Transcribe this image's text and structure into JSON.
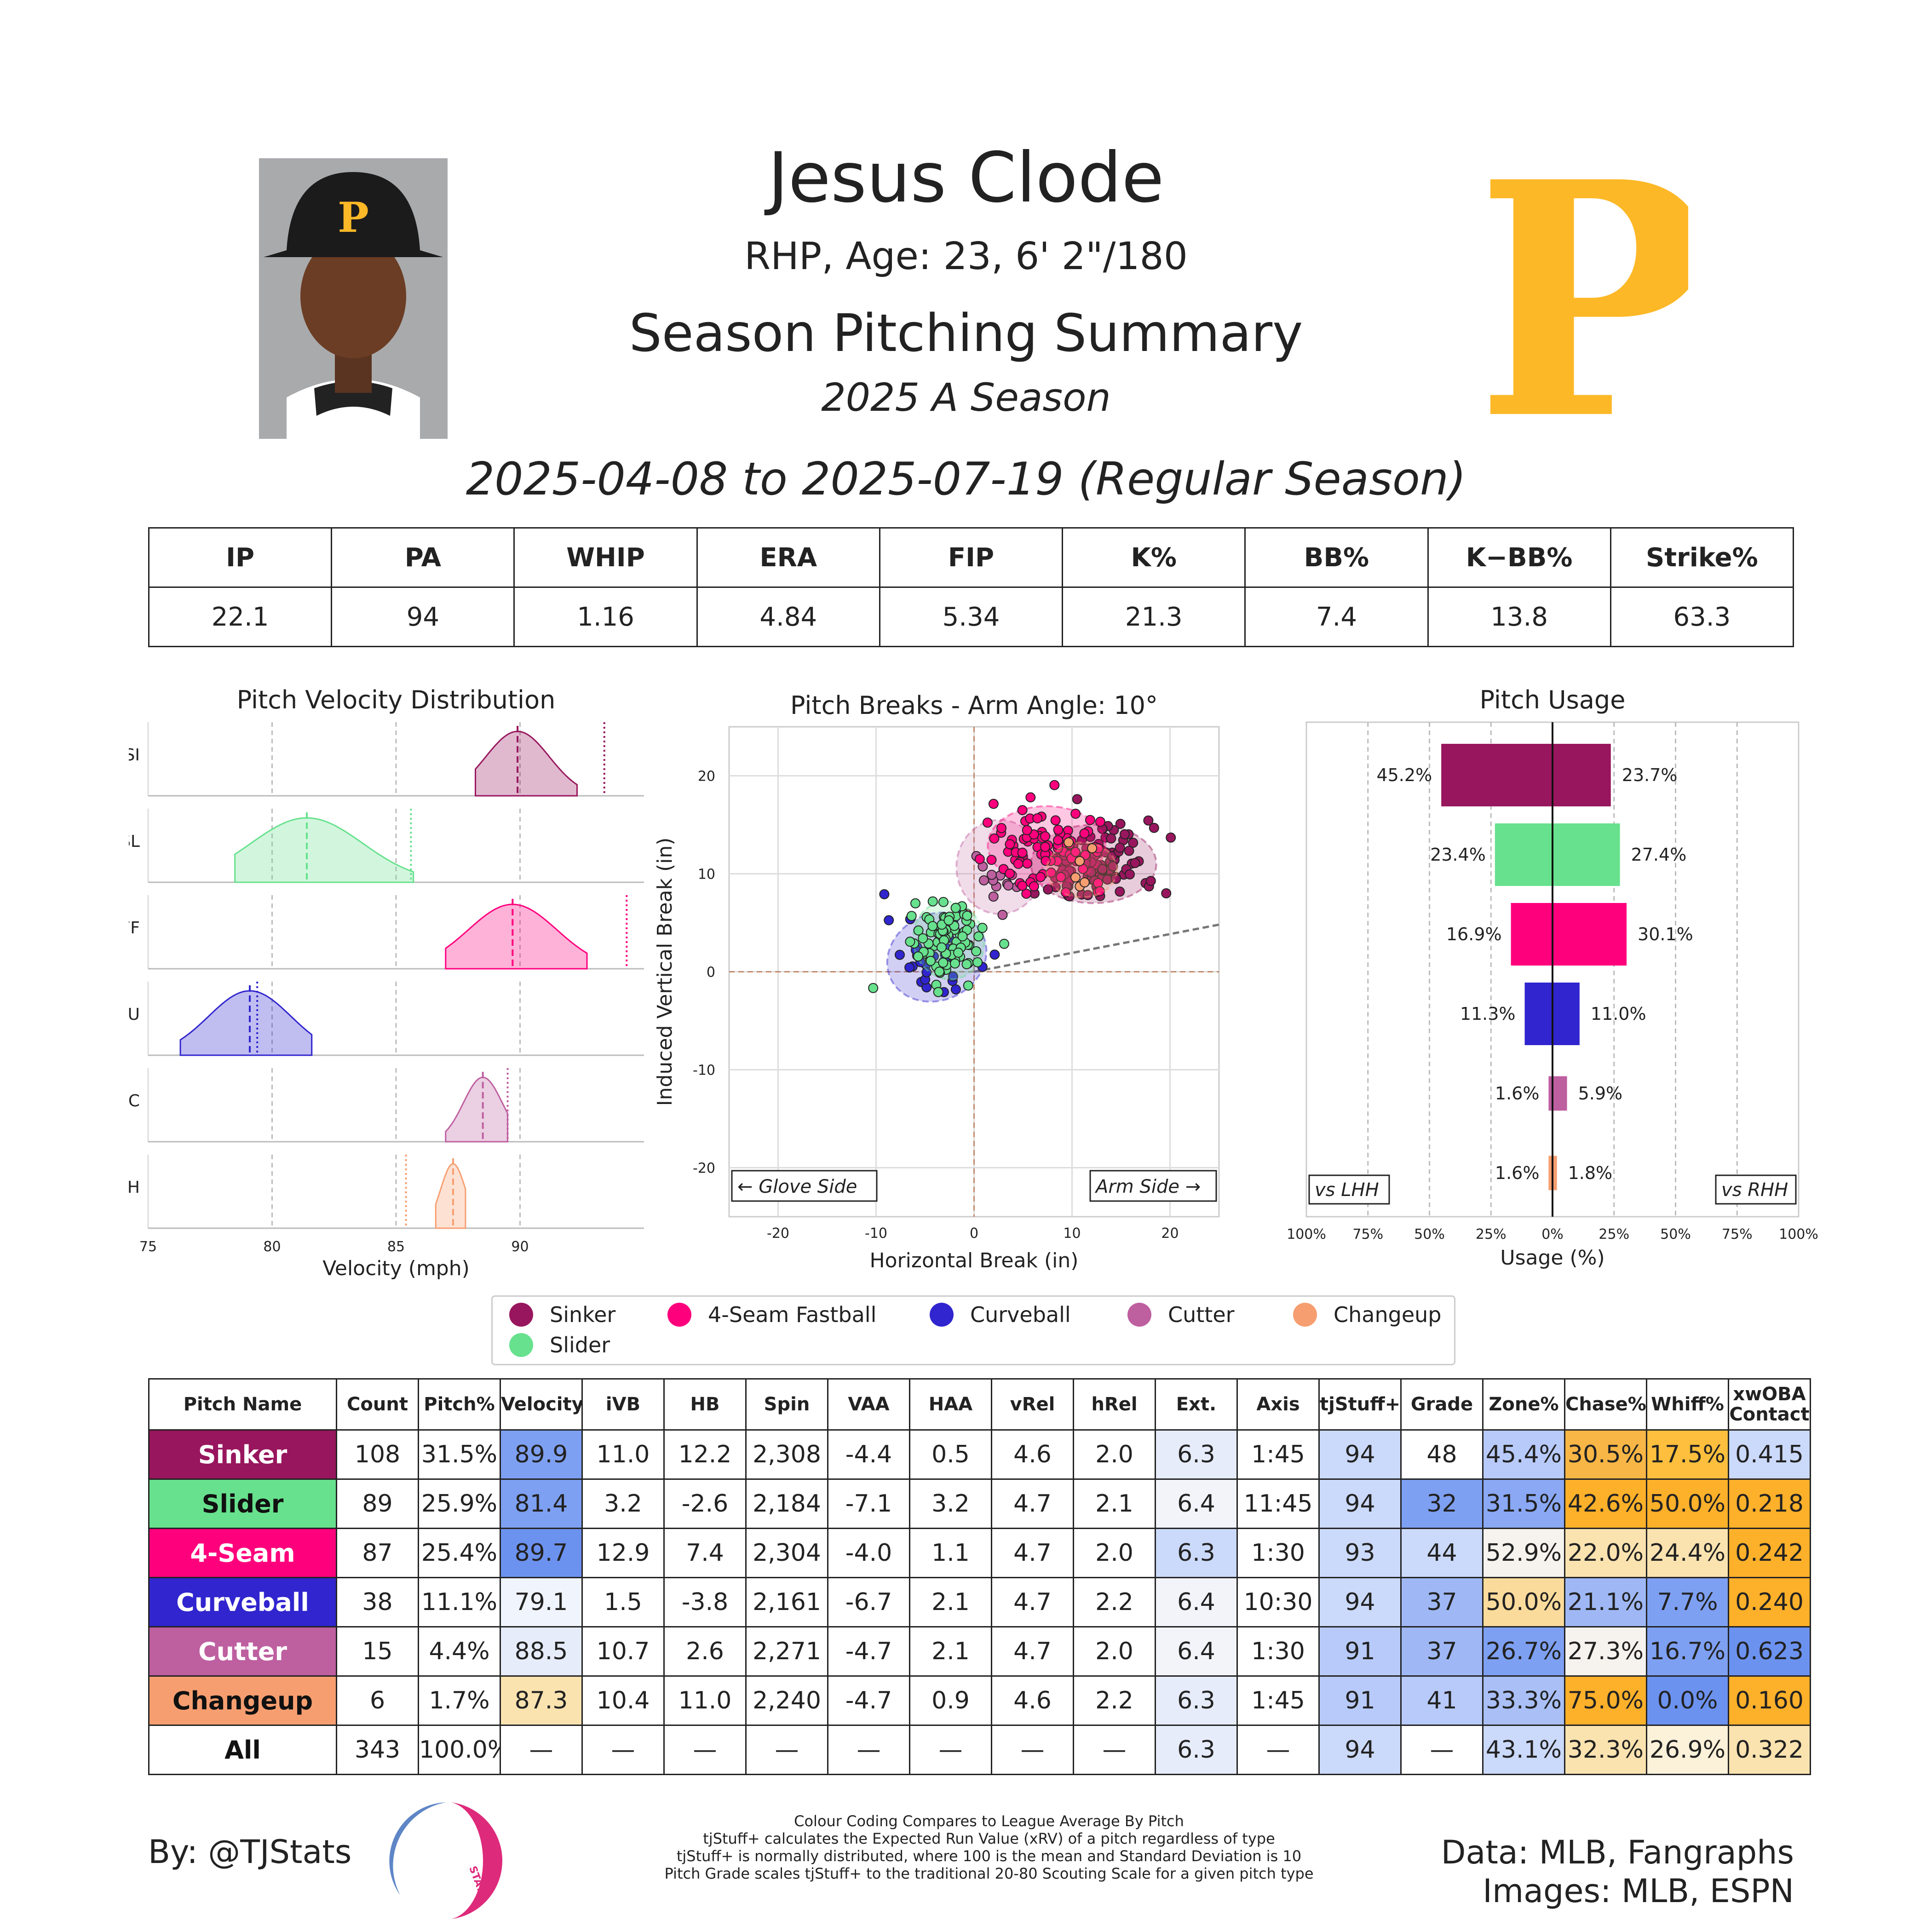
{
  "header": {
    "name": "Jesus Clode",
    "bio": "RHP, Age: 23, 6' 2\"/180",
    "title": "Season Pitching Summary",
    "season": "2025 A Season",
    "date_range": "2025-04-08 to 2025-07-19 (Regular Season)",
    "logo_letter": "P"
  },
  "colors": {
    "Sinker": "#98165d",
    "Slider": "#67e18d",
    "4-Seam Fastball": "#ff007d",
    "Curveball": "#3025ce",
    "Cutter": "#be5fa0",
    "Changeup": "#f79e70",
    "team_gold": "#fdb827"
  },
  "season_stats": {
    "headers": [
      "IP",
      "PA",
      "WHIP",
      "ERA",
      "FIP",
      "K%",
      "BB%",
      "K−BB%",
      "Strike%"
    ],
    "values": [
      "22.1",
      "94",
      "1.16",
      "4.84",
      "5.34",
      "21.3",
      "7.4",
      "13.8",
      "63.3"
    ]
  },
  "legend": [
    "Sinker",
    "4-Seam Fastball",
    "Curveball",
    "Cutter",
    "Changeup",
    "Slider"
  ],
  "chart_data": [
    {
      "type": "area",
      "title": "Pitch Velocity Distribution",
      "xlabel": "Velocity (mph)",
      "xlim": [
        75,
        95
      ],
      "xticks": [
        "75",
        "80",
        "85",
        "90"
      ],
      "rows": [
        {
          "label": "SI",
          "pitch": "Sinker",
          "min": 88.2,
          "max": 92.3,
          "mean": 89.9,
          "league": 93.4
        },
        {
          "label": "SL",
          "pitch": "Slider",
          "min": 78.5,
          "max": 85.7,
          "mean": 81.4,
          "league": 85.6
        },
        {
          "label": "FF",
          "pitch": "4-Seam Fastball",
          "min": 87.0,
          "max": 92.7,
          "mean": 89.7,
          "league": 94.3
        },
        {
          "label": "CU",
          "pitch": "Curveball",
          "min": 76.3,
          "max": 81.6,
          "mean": 79.1,
          "league": 79.4
        },
        {
          "label": "FC",
          "pitch": "Cutter",
          "min": 87.0,
          "max": 89.5,
          "mean": 88.5,
          "league": 89.5
        },
        {
          "label": "CH",
          "pitch": "Changeup",
          "min": 86.6,
          "max": 87.8,
          "mean": 87.3,
          "league": 85.4
        }
      ]
    },
    {
      "type": "scatter",
      "title": "Pitch Breaks - Arm Angle: 10°",
      "xlabel": "Horizontal Break (in)",
      "ylabel": "Induced Vertical Break (in)",
      "xlim": [
        -25,
        25
      ],
      "ylim": [
        -25,
        25
      ],
      "xticks": [
        "-20",
        "-10",
        "0",
        "10",
        "20"
      ],
      "yticks": [
        "-20",
        "-10",
        "0",
        "10",
        "20"
      ],
      "arm_angle": 10,
      "left_annotation": "← Glove Side",
      "right_annotation": "Arm Side →",
      "clusters": [
        {
          "pitch": "Sinker",
          "cx": 12.2,
          "cy": 11.0,
          "sx": 3.2,
          "sy": 2.0,
          "n": 108
        },
        {
          "pitch": "4-Seam Fastball",
          "cx": 7.4,
          "cy": 12.9,
          "sx": 3.0,
          "sy": 2.0,
          "n": 87
        },
        {
          "pitch": "Slider",
          "cx": -2.6,
          "cy": 3.2,
          "sx": 1.8,
          "sy": 2.0,
          "n": 89
        },
        {
          "pitch": "Curveball",
          "cx": -3.8,
          "cy": 1.5,
          "sx": 2.6,
          "sy": 2.2,
          "n": 38
        },
        {
          "pitch": "Cutter",
          "cx": 2.6,
          "cy": 10.7,
          "sx": 2.2,
          "sy": 2.4,
          "n": 15
        },
        {
          "pitch": "Changeup",
          "cx": 11.0,
          "cy": 10.4,
          "sx": 1.8,
          "sy": 1.4,
          "n": 6
        }
      ]
    },
    {
      "type": "bar",
      "title": "Pitch Usage",
      "xlabel": "Usage (%)",
      "xlim": [
        -100,
        100
      ],
      "xticks": [
        "100%",
        "75%",
        "50%",
        "25%",
        "0%",
        "25%",
        "50%",
        "75%",
        "100%"
      ],
      "left_box": "vs LHH",
      "right_box": "vs RHH",
      "series": [
        {
          "pitch": "Sinker",
          "lhh": 45.2,
          "rhh": 23.7,
          "lhh_label": "45.2%",
          "rhh_label": "23.7%"
        },
        {
          "pitch": "Slider",
          "lhh": 23.4,
          "rhh": 27.4,
          "lhh_label": "23.4%",
          "rhh_label": "27.4%"
        },
        {
          "pitch": "4-Seam Fastball",
          "lhh": 16.9,
          "rhh": 30.1,
          "lhh_label": "16.9%",
          "rhh_label": "30.1%"
        },
        {
          "pitch": "Curveball",
          "lhh": 11.3,
          "rhh": 11.0,
          "lhh_label": "11.3%",
          "rhh_label": "11.0%"
        },
        {
          "pitch": "Cutter",
          "lhh": 1.6,
          "rhh": 5.9,
          "lhh_label": "1.6%",
          "rhh_label": "5.9%"
        },
        {
          "pitch": "Changeup",
          "lhh": 1.6,
          "rhh": 1.8,
          "lhh_label": "1.6%",
          "rhh_label": "1.8%"
        }
      ]
    },
    {
      "type": "table",
      "headers": [
        "Pitch Name",
        "Count",
        "Pitch%",
        "Velocity",
        "iVB",
        "HB",
        "Spin",
        "VAA",
        "HAA",
        "vRel",
        "hRel",
        "Ext.",
        "Axis",
        "tjStuff+",
        "Grade",
        "Zone%",
        "Chase%",
        "Whiff%",
        "xwOBA Contact"
      ],
      "rows": [
        {
          "name": "Sinker",
          "bg": "#98165d",
          "fg": "#ffffff",
          "cells": [
            "108",
            "31.5%",
            "89.9",
            "11.0",
            "12.2",
            "2,308",
            "-4.4",
            "0.5",
            "4.6",
            "2.0",
            "6.3",
            "1:45",
            "94",
            "48",
            "45.4%",
            "30.5%",
            "17.5%",
            "0.415"
          ],
          "shade": {
            "3": "#7ea0f2",
            "11": "#e6ecfa",
            "13": "#cbd9fa",
            "15": "#b8cafa",
            "16": "#f8b646",
            "17": "#fdbf3d",
            "18": "#cbd9fa"
          }
        },
        {
          "name": "Slider",
          "bg": "#67e18d",
          "fg": "#111111",
          "cells": [
            "89",
            "25.9%",
            "81.4",
            "3.2",
            "-2.6",
            "2,184",
            "-7.1",
            "3.2",
            "4.7",
            "2.1",
            "6.4",
            "11:45",
            "94",
            "32",
            "31.5%",
            "42.6%",
            "50.0%",
            "0.218"
          ],
          "shade": {
            "3": "#7ea0f2",
            "11": "#f2f4fa",
            "13": "#cbd9fa",
            "14": "#7ea0f2",
            "15": "#8aa8f4",
            "16": "#fdb02a",
            "17": "#fdb02a",
            "18": "#fdb02a"
          }
        },
        {
          "name": "4-Seam",
          "bg": "#ff007d",
          "fg": "#ffffff",
          "cells": [
            "87",
            "25.4%",
            "89.7",
            "12.9",
            "7.4",
            "2,304",
            "-4.0",
            "1.1",
            "4.7",
            "2.0",
            "6.3",
            "1:30",
            "93",
            "44",
            "52.9%",
            "22.0%",
            "24.4%",
            "0.242"
          ],
          "shade": {
            "3": "#6c92f0",
            "11": "#cbd9fa",
            "13": "#cbd9fa",
            "14": "#cbd9fa",
            "15": "#f6f3ee",
            "16": "#fbe3b0",
            "17": "#fbe3b0",
            "18": "#fdb02a"
          }
        },
        {
          "name": "Curveball",
          "bg": "#3025ce",
          "fg": "#ffffff",
          "cells": [
            "38",
            "11.1%",
            "79.1",
            "1.5",
            "-3.8",
            "2,161",
            "-6.7",
            "2.1",
            "4.7",
            "2.2",
            "6.4",
            "10:30",
            "94",
            "37",
            "50.0%",
            "21.1%",
            "7.7%",
            "0.240"
          ],
          "shade": {
            "3": "#f0f4fc",
            "11": "#f2f4fa",
            "13": "#cbd9fa",
            "14": "#9fb8f5",
            "15": "#fbdb9c",
            "16": "#9fb8f5",
            "17": "#7ea0f2",
            "18": "#fdb02a"
          }
        },
        {
          "name": "Cutter",
          "bg": "#be5fa0",
          "fg": "#ffffff",
          "cells": [
            "15",
            "4.4%",
            "88.5",
            "10.7",
            "2.6",
            "2,271",
            "-4.7",
            "2.1",
            "4.7",
            "2.0",
            "6.4",
            "1:30",
            "91",
            "37",
            "26.7%",
            "27.3%",
            "16.7%",
            "0.623"
          ],
          "shade": {
            "3": "#e6ecfa",
            "11": "#f2f4fa",
            "13": "#b8cafa",
            "14": "#9fb8f5",
            "15": "#7ea0f2",
            "16": "#f6f3ee",
            "17": "#7ea0f2",
            "18": "#6c92f0"
          }
        },
        {
          "name": "Changeup",
          "bg": "#f79e70",
          "fg": "#111111",
          "cells": [
            "6",
            "1.7%",
            "87.3",
            "10.4",
            "11.0",
            "2,240",
            "-4.7",
            "0.9",
            "4.6",
            "2.2",
            "6.3",
            "1:45",
            "91",
            "41",
            "33.3%",
            "75.0%",
            "0.0%",
            "0.160"
          ],
          "shade": {
            "3": "#fbe3b0",
            "11": "#e6ecfa",
            "13": "#b8cafa",
            "14": "#b8cafa",
            "15": "#a9bff6",
            "16": "#fdb02a",
            "17": "#6c92f0",
            "18": "#fdb02a"
          }
        },
        {
          "name": "All",
          "bg": "#ffffff",
          "fg": "#111111",
          "cells": [
            "343",
            "100.0%",
            "—",
            "—",
            "—",
            "—",
            "—",
            "—",
            "—",
            "—",
            "6.3",
            "—",
            "94",
            "—",
            "43.1%",
            "32.3%",
            "26.9%",
            "0.322"
          ],
          "shade": {
            "11": "#e6ecfa",
            "13": "#cbd9fa",
            "15": "#cbd9fa",
            "16": "#fbe3b0",
            "17": "#fcf1d9",
            "18": "#fbe3b0"
          }
        }
      ]
    }
  ],
  "footer": {
    "by": "By: @TJStats",
    "note_lines": [
      "Colour Coding Compares to League Average By Pitch",
      "tjStuff+ calculates the Expected Run Value (xRV) of a pitch regardless of type",
      "tjStuff+ is normally distributed, where 100 is the mean and Standard Deviation is 10",
      "Pitch Grade scales tjStuff+ to the traditional 20-80 Scouting Scale for a given pitch type"
    ],
    "data_source": "Data: MLB, Fangraphs",
    "image_source": "Images: MLB, ESPN",
    "logo_text": "STATS"
  }
}
